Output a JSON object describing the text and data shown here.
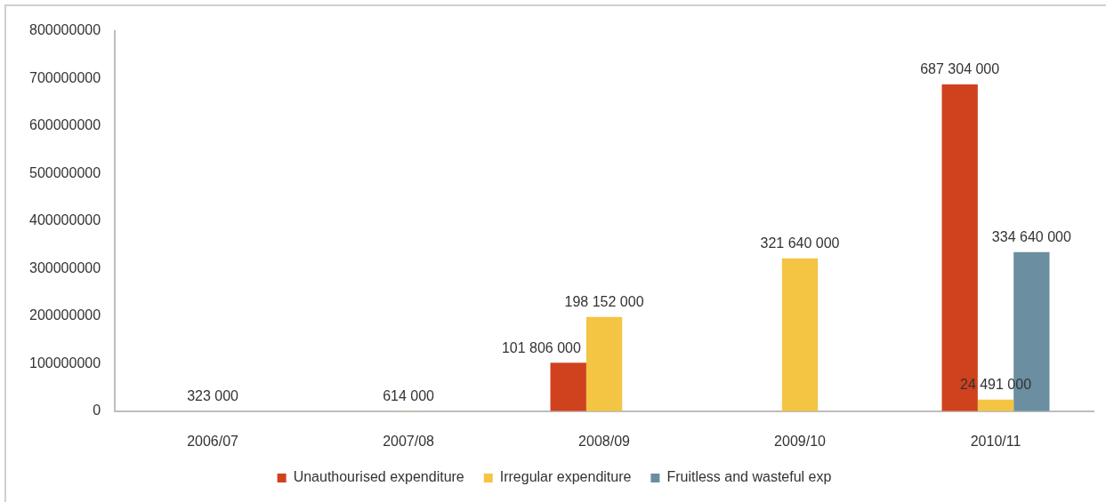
{
  "chart_data": {
    "type": "bar",
    "categories": [
      "2006/07",
      "2007/08",
      "2008/09",
      "2009/10",
      "2010/11"
    ],
    "series": [
      {
        "name": "Unauthourised expenditure",
        "color": "#d0411d",
        "values": [
          null,
          null,
          101806000,
          null,
          687304000
        ],
        "value_labels": [
          null,
          null,
          "101 806 000",
          null,
          "687 304 000"
        ]
      },
      {
        "name": "Irregular expenditure",
        "color": "#f4c443",
        "values": [
          323000,
          614000,
          198152000,
          321640000,
          24491000
        ],
        "value_labels": [
          "323 000",
          "614 000",
          "198 152 000",
          "321 640 000",
          "24 491 000"
        ]
      },
      {
        "name": "Fruitless and wasteful exp",
        "color": "#6b8ea1",
        "values": [
          null,
          null,
          null,
          null,
          334640000
        ],
        "value_labels": [
          null,
          null,
          null,
          null,
          "334 640 000"
        ]
      }
    ],
    "ylim": [
      0,
      800000000
    ],
    "yticks": [
      0,
      100000000,
      200000000,
      300000000,
      400000000,
      500000000,
      600000000,
      700000000,
      800000000
    ],
    "legend": "bottom"
  }
}
